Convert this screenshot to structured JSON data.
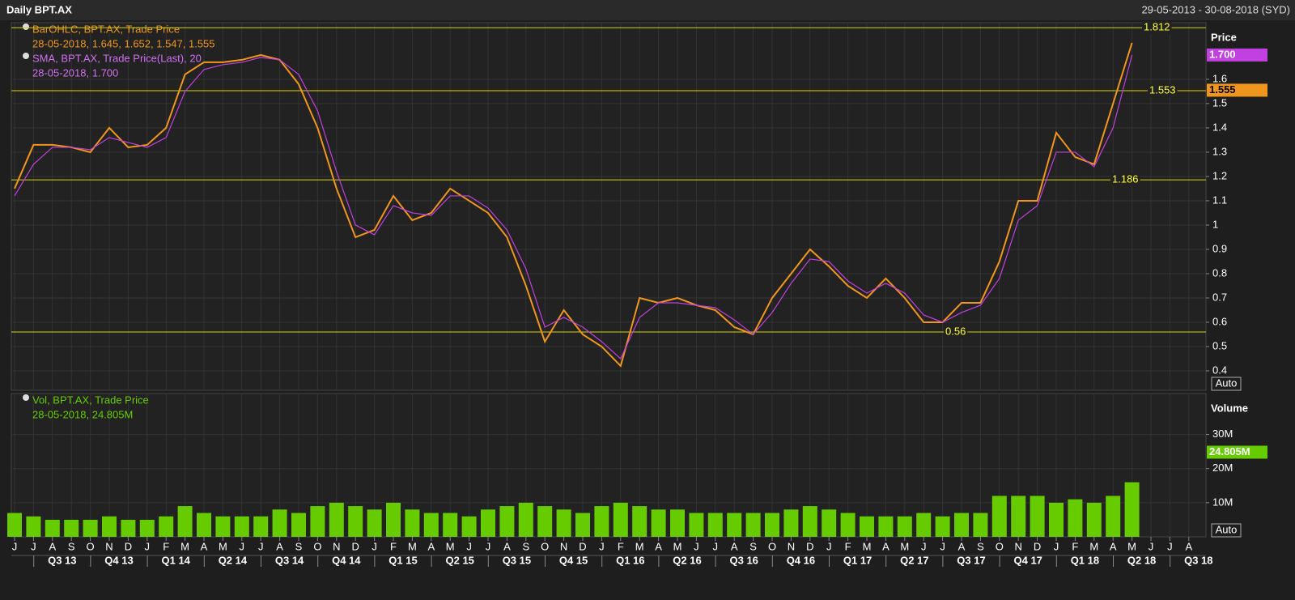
{
  "header": {
    "title": "Daily BPT.AX",
    "range": "29-05-2013 - 30-08-2018 (SYD)"
  },
  "chart_data": [
    {
      "type": "line",
      "axis_title": "Price",
      "auto": "Auto",
      "legend": [
        "BarOHLC, BPT.AX, Trade Price",
        "28-05-2018, 1.645, 1.652, 1.547, 1.555",
        "SMA, BPT.AX, Trade Price(Last),  20",
        "28-05-2018, 1.700"
      ],
      "categories": [
        "J",
        "J",
        "A",
        "S",
        "O",
        "N",
        "D",
        "J",
        "F",
        "M",
        "A",
        "M",
        "J",
        "J",
        "A",
        "S",
        "O",
        "N",
        "D",
        "J",
        "F",
        "M",
        "A",
        "M",
        "J",
        "J",
        "A",
        "S",
        "O",
        "N",
        "D",
        "J",
        "F",
        "M",
        "A",
        "M",
        "J",
        "J",
        "A",
        "S",
        "O",
        "N",
        "D",
        "J",
        "F",
        "M",
        "A",
        "M",
        "J",
        "J",
        "A",
        "S",
        "O",
        "N",
        "D",
        "J",
        "F",
        "M",
        "A",
        "M",
        "J",
        "J",
        "A"
      ],
      "quarters": [
        "Q3 13",
        "Q4 13",
        "Q1 14",
        "Q2 14",
        "Q3 14",
        "Q4 14",
        "Q1 15",
        "Q2 15",
        "Q3 15",
        "Q4 15",
        "Q1 16",
        "Q2 16",
        "Q3 16",
        "Q4 16",
        "Q1 17",
        "Q2 17",
        "Q3 17",
        "Q4 17",
        "Q1 18",
        "Q2 18",
        "Q3 18"
      ],
      "series": [
        {
          "name": "BarOHLC, BPT.AX, Trade Price",
          "color": "#f0961e",
          "values": [
            1.15,
            1.33,
            1.33,
            1.32,
            1.3,
            1.4,
            1.32,
            1.33,
            1.4,
            1.62,
            1.67,
            1.67,
            1.68,
            1.7,
            1.68,
            1.58,
            1.4,
            1.15,
            0.95,
            0.98,
            1.12,
            1.02,
            1.05,
            1.15,
            1.1,
            1.05,
            0.95,
            0.75,
            0.52,
            0.65,
            0.55,
            0.5,
            0.42,
            0.7,
            0.68,
            0.7,
            0.67,
            0.65,
            0.58,
            0.55,
            0.7,
            0.8,
            0.9,
            0.83,
            0.75,
            0.7,
            0.78,
            0.7,
            0.6,
            0.6,
            0.68,
            0.68,
            0.85,
            1.1,
            1.1,
            1.38,
            1.28,
            1.25,
            1.5,
            1.75,
            null,
            null,
            null
          ],
          "tag": {
            "value": 1.555,
            "label": "1.555"
          }
        },
        {
          "name": "SMA, BPT.AX, Trade Price(Last),  20",
          "color": "#c040e0",
          "values": [
            1.12,
            1.25,
            1.32,
            1.32,
            1.31,
            1.36,
            1.34,
            1.32,
            1.36,
            1.55,
            1.64,
            1.66,
            1.67,
            1.69,
            1.68,
            1.62,
            1.47,
            1.22,
            1.0,
            0.96,
            1.08,
            1.05,
            1.04,
            1.12,
            1.12,
            1.07,
            0.98,
            0.82,
            0.58,
            0.62,
            0.58,
            0.52,
            0.45,
            0.62,
            0.68,
            0.68,
            0.67,
            0.66,
            0.61,
            0.55,
            0.64,
            0.76,
            0.86,
            0.85,
            0.77,
            0.72,
            0.76,
            0.72,
            0.63,
            0.6,
            0.64,
            0.67,
            0.78,
            1.02,
            1.08,
            1.3,
            1.3,
            1.24,
            1.4,
            1.7,
            null,
            null,
            null
          ],
          "tag": {
            "value": 1.7,
            "label": "1.700"
          }
        }
      ],
      "hlines": [
        1.812,
        1.553,
        1.186,
        0.56
      ],
      "ylim": [
        0.32,
        1.833
      ],
      "yticks": [
        0.4,
        0.5,
        0.6,
        0.7,
        0.8,
        0.9,
        1,
        1.1,
        1.2,
        1.3,
        1.4,
        1.5,
        1.6
      ],
      "grid": true
    },
    {
      "type": "bar",
      "axis_title": "Volume",
      "auto": "Auto",
      "legend": [
        "Vol, BPT.AX, Trade Price",
        "28-05-2018, 24.805M"
      ],
      "series": [
        {
          "name": "Vol, BPT.AX, Trade Price",
          "color": "#66cc00",
          "values": [
            7000000,
            6000000,
            5000000,
            5000000,
            5000000,
            6000000,
            5000000,
            5000000,
            6000000,
            9000000,
            7000000,
            6000000,
            6000000,
            6000000,
            8000000,
            7000000,
            9000000,
            10000000,
            9000000,
            8000000,
            10000000,
            8000000,
            7000000,
            7000000,
            6000000,
            8000000,
            9000000,
            10000000,
            9000000,
            8000000,
            7000000,
            9000000,
            10000000,
            9000000,
            8000000,
            8000000,
            7000000,
            7000000,
            7000000,
            7000000,
            7000000,
            8000000,
            9000000,
            8000000,
            7000000,
            6000000,
            6000000,
            6000000,
            7000000,
            6000000,
            7000000,
            7000000,
            12000000,
            12000000,
            12000000,
            10000000,
            11000000,
            10000000,
            12000000,
            16000000,
            null,
            null,
            null
          ],
          "tag": {
            "value": 24805000,
            "label": "24.805M"
          }
        }
      ],
      "ylim": [
        0,
        42000000
      ],
      "yticks": [
        {
          "value": 10000000,
          "label": "10M"
        },
        {
          "value": 20000000,
          "label": "20M"
        },
        {
          "value": 30000000,
          "label": "30M"
        }
      ],
      "grid": true
    }
  ]
}
